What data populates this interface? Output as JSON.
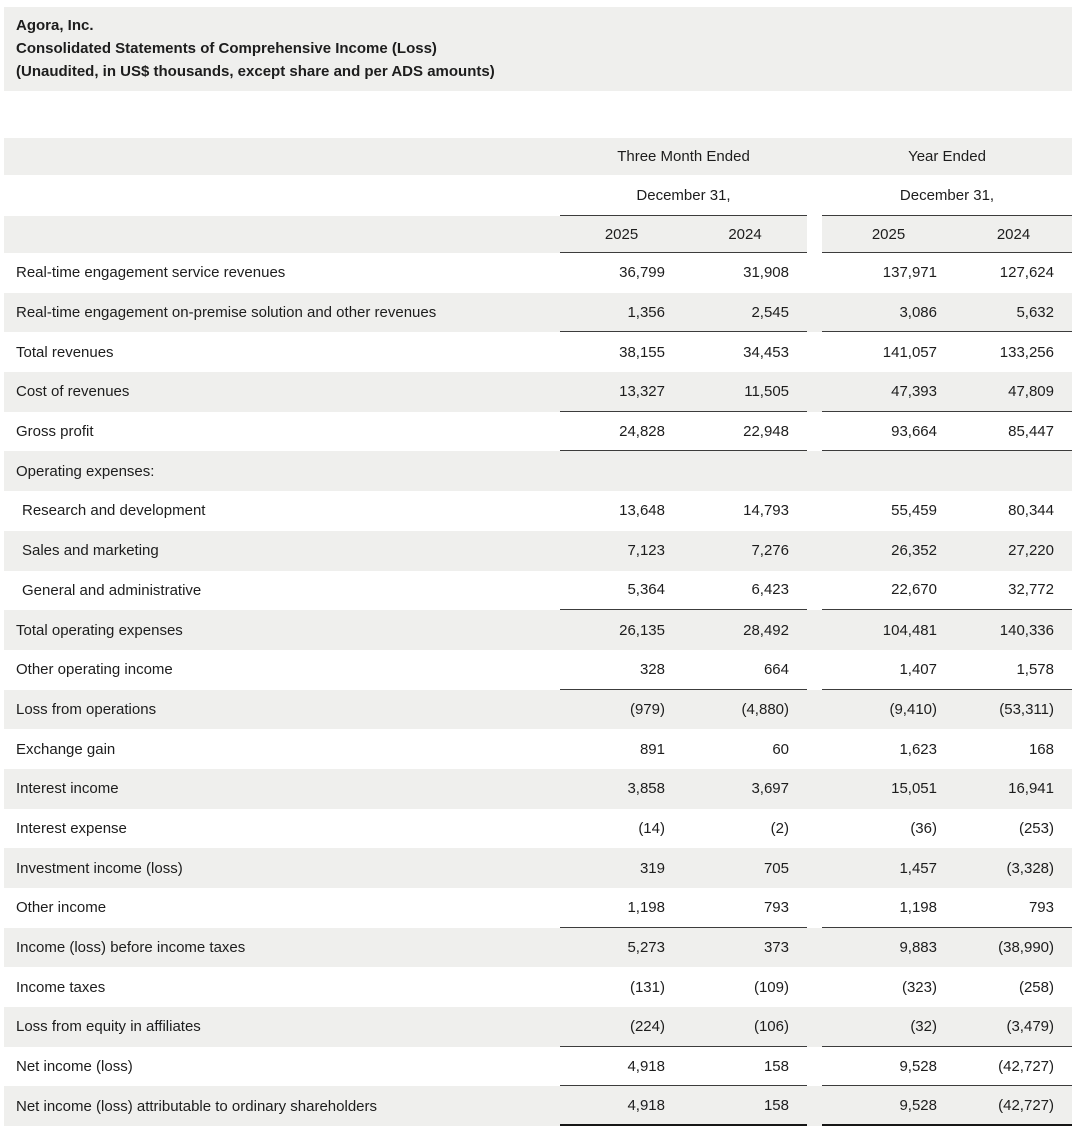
{
  "header": {
    "company": "Agora, Inc.",
    "statement": "Consolidated Statements of Comprehensive Income (Loss)",
    "note": "(Unaudited, in US$ thousands, except share and per ADS amounts)"
  },
  "table": {
    "groups": [
      {
        "period": "Three Month Ended",
        "date": "December 31,",
        "years": [
          "2025",
          "2024"
        ]
      },
      {
        "period": "Year Ended",
        "date": "December 31,",
        "years": [
          "2025",
          "2024"
        ]
      }
    ],
    "rows": [
      {
        "label": "Real-time engagement service revenues",
        "values": [
          "36,799",
          "31,908",
          "137,971",
          "127,624"
        ],
        "indent": false,
        "underline": false,
        "double_underline": false
      },
      {
        "label": "Real-time engagement on-premise solution and other revenues",
        "values": [
          "1,356",
          "2,545",
          "3,086",
          "5,632"
        ],
        "indent": false,
        "underline": true,
        "double_underline": false
      },
      {
        "label": "Total revenues",
        "values": [
          "38,155",
          "34,453",
          "141,057",
          "133,256"
        ],
        "indent": false,
        "underline": false,
        "double_underline": false
      },
      {
        "label": "Cost of revenues",
        "values": [
          "13,327",
          "11,505",
          "47,393",
          "47,809"
        ],
        "indent": false,
        "underline": true,
        "double_underline": false
      },
      {
        "label": "Gross profit",
        "values": [
          "24,828",
          "22,948",
          "93,664",
          "85,447"
        ],
        "indent": false,
        "underline": true,
        "double_underline": false
      },
      {
        "label": "Operating expenses:",
        "values": [
          "",
          "",
          "",
          ""
        ],
        "indent": false,
        "underline": false,
        "double_underline": false
      },
      {
        "label": "Research and development",
        "values": [
          "13,648",
          "14,793",
          "55,459",
          "80,344"
        ],
        "indent": true,
        "underline": false,
        "double_underline": false
      },
      {
        "label": "Sales and marketing",
        "values": [
          "7,123",
          "7,276",
          "26,352",
          "27,220"
        ],
        "indent": true,
        "underline": false,
        "double_underline": false
      },
      {
        "label": "General and administrative",
        "values": [
          "5,364",
          "6,423",
          "22,670",
          "32,772"
        ],
        "indent": true,
        "underline": true,
        "double_underline": false
      },
      {
        "label": "Total operating expenses",
        "values": [
          "26,135",
          "28,492",
          "104,481",
          "140,336"
        ],
        "indent": false,
        "underline": false,
        "double_underline": false
      },
      {
        "label": "Other operating income",
        "values": [
          "328",
          "664",
          "1,407",
          "1,578"
        ],
        "indent": false,
        "underline": true,
        "double_underline": false
      },
      {
        "label": "Loss from operations",
        "values": [
          "(979)",
          "(4,880)",
          "(9,410)",
          "(53,311)"
        ],
        "indent": false,
        "underline": false,
        "double_underline": false
      },
      {
        "label": "Exchange gain",
        "values": [
          "891",
          "60",
          "1,623",
          "168"
        ],
        "indent": false,
        "underline": false,
        "double_underline": false
      },
      {
        "label": "Interest income",
        "values": [
          "3,858",
          "3,697",
          "15,051",
          "16,941"
        ],
        "indent": false,
        "underline": false,
        "double_underline": false
      },
      {
        "label": "Interest expense",
        "values": [
          "(14)",
          "(2)",
          "(36)",
          "(253)"
        ],
        "indent": false,
        "underline": false,
        "double_underline": false
      },
      {
        "label": "Investment income (loss)",
        "values": [
          "319",
          "705",
          "1,457",
          "(3,328)"
        ],
        "indent": false,
        "underline": false,
        "double_underline": false
      },
      {
        "label": "Other income",
        "values": [
          "1,198",
          "793",
          "1,198",
          "793"
        ],
        "indent": false,
        "underline": true,
        "double_underline": false
      },
      {
        "label": "Income (loss) before income taxes",
        "values": [
          "5,273",
          "373",
          "9,883",
          "(38,990)"
        ],
        "indent": false,
        "underline": false,
        "double_underline": false
      },
      {
        "label": "Income taxes",
        "values": [
          "(131)",
          "(109)",
          "(323)",
          "(258)"
        ],
        "indent": false,
        "underline": false,
        "double_underline": false
      },
      {
        "label": "Loss from equity in affiliates",
        "values": [
          "(224)",
          "(106)",
          "(32)",
          "(3,479)"
        ],
        "indent": false,
        "underline": true,
        "double_underline": false
      },
      {
        "label": "Net income (loss)",
        "values": [
          "4,918",
          "158",
          "9,528",
          "(42,727)"
        ],
        "indent": false,
        "underline": true,
        "double_underline": false
      },
      {
        "label": "Net income (loss) attributable to ordinary shareholders",
        "values": [
          "4,918",
          "158",
          "9,528",
          "(42,727)"
        ],
        "indent": false,
        "underline": false,
        "double_underline": true
      }
    ]
  },
  "colors": {
    "band_gray": "#efefed",
    "rule": "#3c3c3c",
    "strong_rule": "#161616",
    "text": "#1d1d1d"
  }
}
